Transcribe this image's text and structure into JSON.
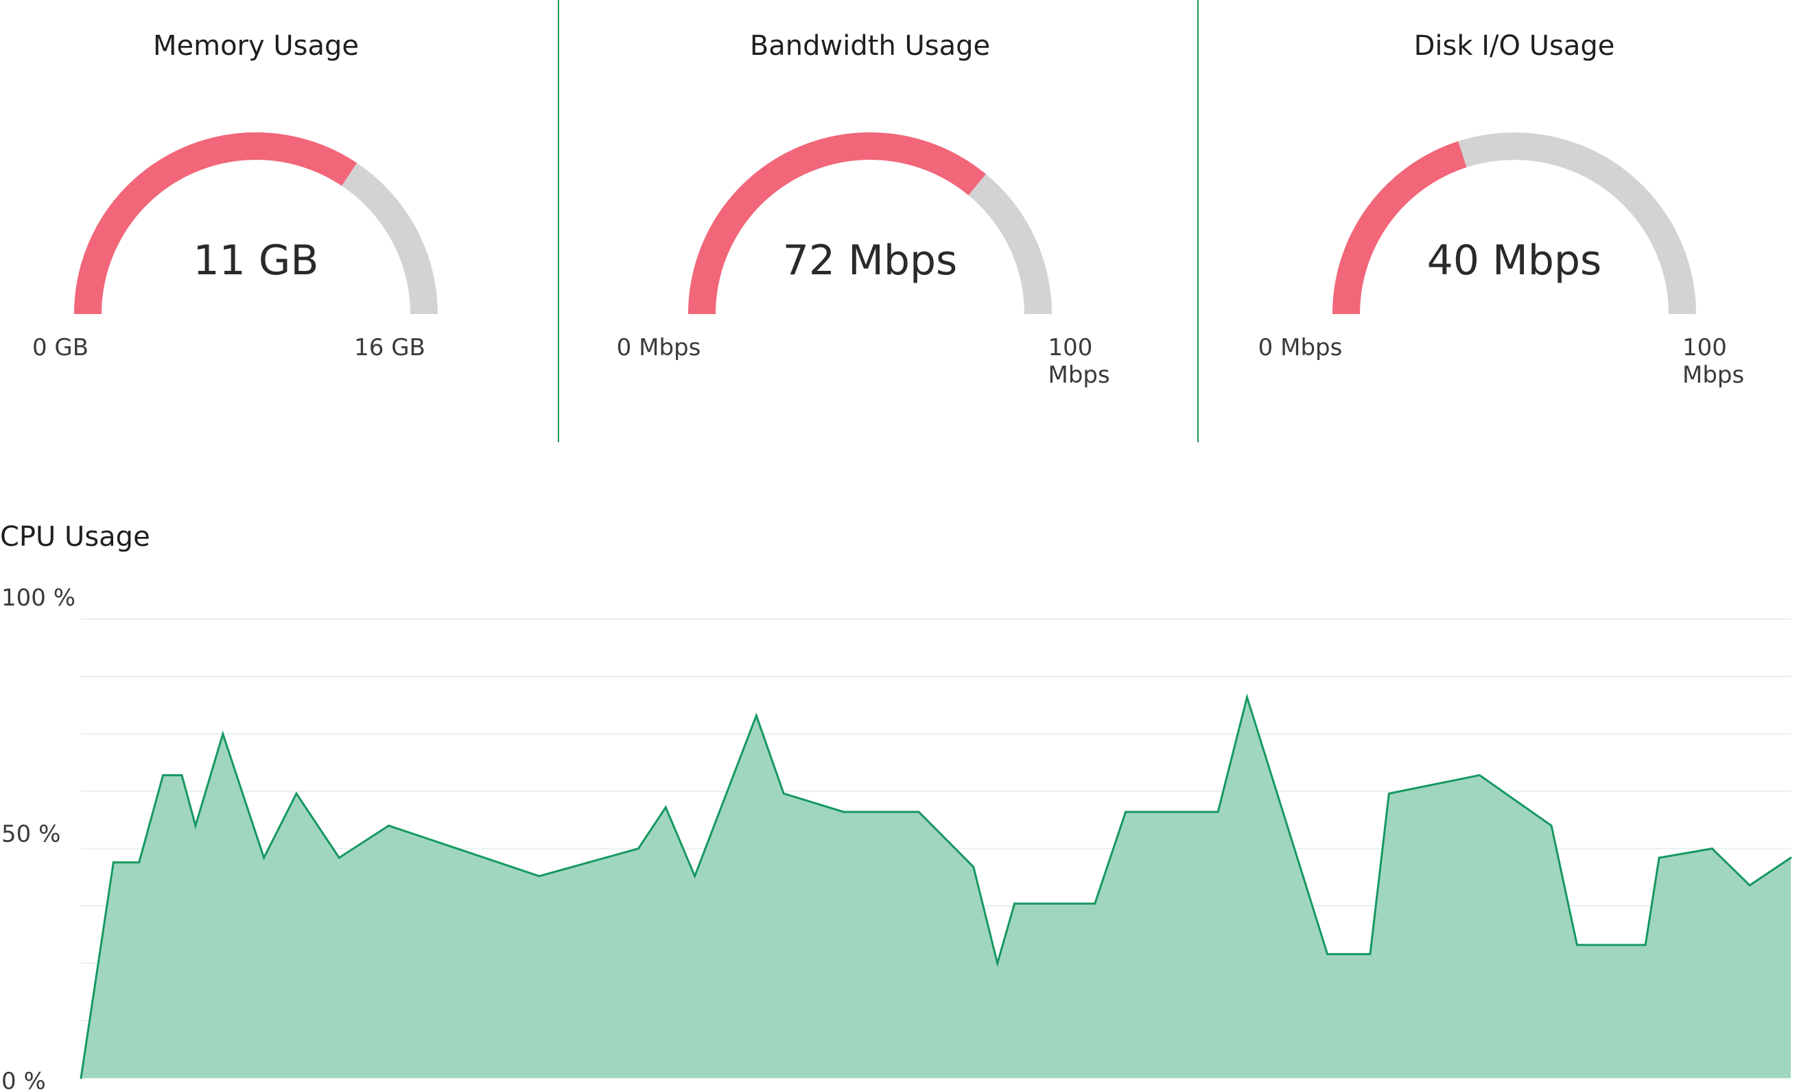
{
  "gauges": [
    {
      "title": "Memory Usage",
      "value_label": "11 GB",
      "value": 11,
      "min": 0,
      "max": 16,
      "min_label": "0 GB",
      "max_label": "16 GB"
    },
    {
      "title": "Bandwidth Usage",
      "value_label": "72 Mbps",
      "value": 72,
      "min": 0,
      "max": 100,
      "min_label": "0 Mbps",
      "max_label": "100 Mbps"
    },
    {
      "title": "Disk I/O Usage",
      "value_label": "40 Mbps",
      "value": 40,
      "min": 0,
      "max": 100,
      "min_label": "0 Mbps",
      "max_label": "100 Mbps"
    }
  ],
  "colors": {
    "gauge_fill": "#f26679",
    "gauge_track": "#d3d3d3",
    "divider": "#1a9a5e",
    "line": "#169862",
    "area": "#a0d6bf",
    "grid": "#e6f1ef"
  },
  "chart_data": {
    "type": "area",
    "title": "CPU Usage",
    "ylabel": "",
    "xlabel": "",
    "ylim": [
      0,
      100
    ],
    "yticks": [
      0,
      50,
      100
    ],
    "ytick_labels": [
      "0 %",
      "50 %",
      "100 %"
    ],
    "grid": true,
    "series": [
      {
        "values": [
          0,
          47,
          47,
          66,
          66,
          55,
          75,
          48,
          62,
          48,
          55,
          44,
          50,
          59,
          44,
          79,
          62,
          58,
          58,
          46,
          25,
          38,
          38,
          58,
          58,
          83,
          27,
          27,
          62,
          66,
          55,
          29,
          29,
          48,
          50,
          42,
          48
        ]
      }
    ],
    "x": [
      0,
      0.019,
      0.034,
      0.048,
      0.059,
      0.067,
      0.083,
      0.107,
      0.126,
      0.151,
      0.18,
      0.268,
      0.326,
      0.342,
      0.359,
      0.395,
      0.411,
      0.446,
      0.49,
      0.522,
      0.536,
      0.546,
      0.593,
      0.611,
      0.665,
      0.682,
      0.729,
      0.754,
      0.765,
      0.818,
      0.86,
      0.875,
      0.915,
      0.923,
      0.954,
      0.976,
      1.0
    ]
  }
}
